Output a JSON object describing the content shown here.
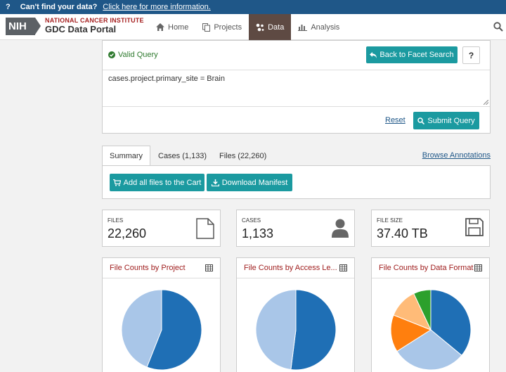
{
  "notice": {
    "icon_text": "?",
    "message": "Can't find your data?",
    "link": "Click here for more information."
  },
  "header": {
    "logo": {
      "mark": "NIH",
      "line1": "NATIONAL CANCER INSTITUTE",
      "line2": "GDC Data Portal"
    },
    "nav": [
      {
        "label": "Home",
        "icon": "home-icon"
      },
      {
        "label": "Projects",
        "icon": "copy-icon"
      },
      {
        "label": "Data",
        "icon": "data-icon",
        "active": true
      },
      {
        "label": "Analysis",
        "icon": "bar-chart-icon"
      }
    ]
  },
  "query": {
    "status": "Valid Query",
    "back_label": "Back to Facet Search",
    "help_label": "?",
    "text": "cases.project.primary_site = Brain",
    "reset_label": "Reset",
    "submit_label": "Submit Query"
  },
  "tabs": {
    "items": [
      "Summary",
      "Cases (1,133)",
      "Files (22,260)"
    ],
    "active": "Summary",
    "browse_label": "Browse Annotations",
    "cart_label": "Add all files to the Cart",
    "manifest_label": "Download Manifest"
  },
  "stats": [
    {
      "label": "FILES",
      "value": "22,260",
      "icon": "file-icon"
    },
    {
      "label": "CASES",
      "value": "1,133",
      "icon": "user-icon"
    },
    {
      "label": "FILE SIZE",
      "value": "37.40 TB",
      "icon": "save-icon"
    }
  ],
  "charts": [
    {
      "title": "File Counts by Project",
      "slices": [
        {
          "fraction": 0.56,
          "color": "#1f6fb5"
        },
        {
          "fraction": 0.44,
          "color": "#a9c6e8"
        }
      ]
    },
    {
      "title": "File Counts by Access Le...",
      "slices": [
        {
          "fraction": 0.52,
          "color": "#1f6fb5"
        },
        {
          "fraction": 0.48,
          "color": "#a9c6e8"
        }
      ]
    },
    {
      "title": "File Counts by Data Format",
      "slices": [
        {
          "fraction": 0.36,
          "color": "#1f6fb5"
        },
        {
          "fraction": 0.3,
          "color": "#a9c6e8"
        },
        {
          "fraction": 0.15,
          "color": "#ff7f0e"
        },
        {
          "fraction": 0.12,
          "color": "#ffbb78"
        },
        {
          "fraction": 0.07,
          "color": "#2ca02c"
        }
      ]
    }
  ],
  "colors": {
    "teal": "#1b9aa0",
    "brand_red": "#a62121",
    "notice_bg": "#1f5788",
    "nav_active": "#5e4a43"
  }
}
